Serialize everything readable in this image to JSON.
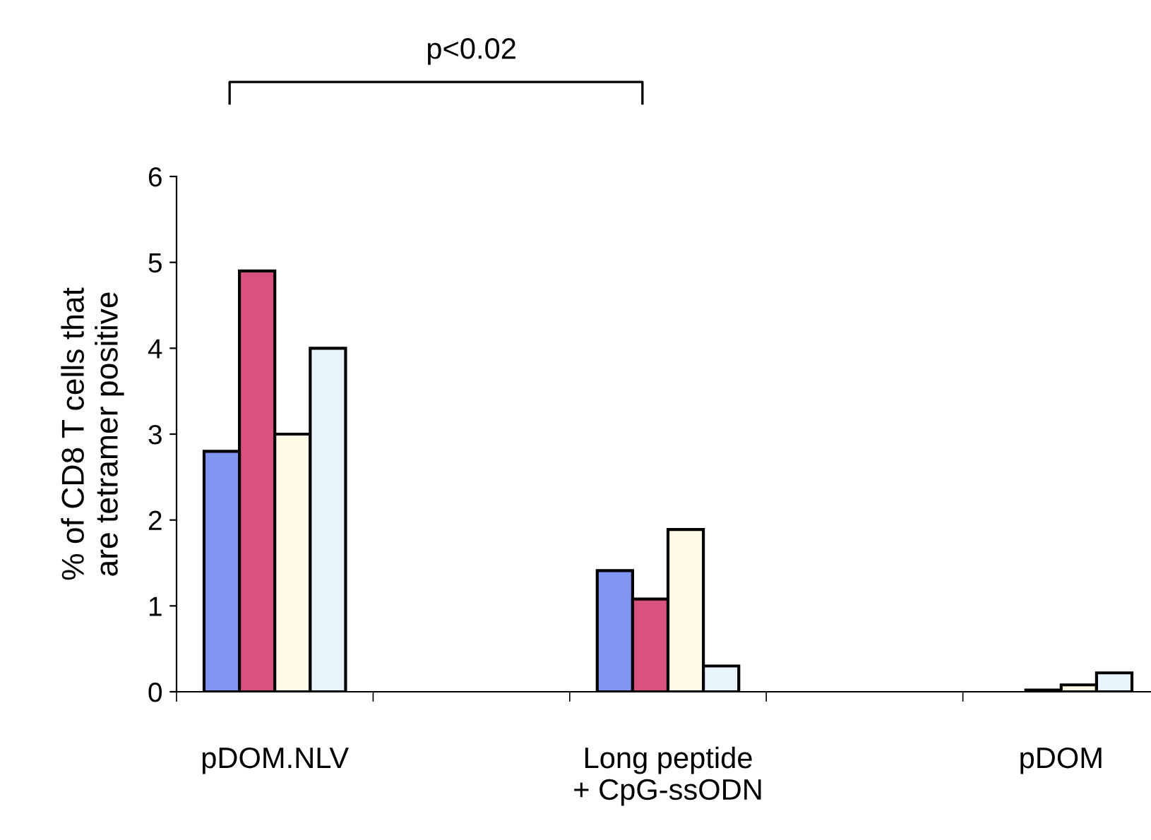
{
  "chart_data": {
    "type": "bar",
    "ylabel": "% of CD8 T cells that\nare tetramer positive",
    "categories": [
      "pDOM.NLV",
      null,
      "Long peptide\n+ CpG-ssODN",
      null,
      "pDOM"
    ],
    "series": [
      {
        "color": "#8096f0",
        "values": [
          2.8,
          null,
          1.41,
          null,
          null
        ]
      },
      {
        "color": "#d9527f",
        "values": [
          4.9,
          null,
          1.08,
          null,
          0.02
        ]
      },
      {
        "color": "#fffbe8",
        "values": [
          3.0,
          null,
          1.89,
          null,
          0.08
        ]
      },
      {
        "color": "#e8f4fb",
        "values": [
          4.0,
          null,
          0.3,
          null,
          0.22
        ]
      }
    ],
    "ylim": [
      0,
      6
    ],
    "yticks": [
      0,
      1,
      2,
      3,
      4,
      5,
      6
    ],
    "grid": false,
    "legend": false,
    "annotations": [
      "p<0.02"
    ]
  }
}
